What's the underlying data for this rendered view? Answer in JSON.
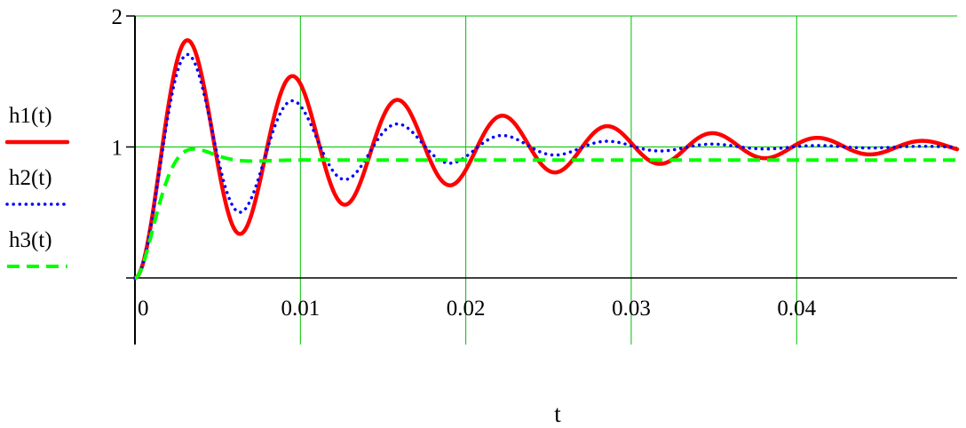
{
  "chart_data": {
    "type": "line",
    "xlabel": "t",
    "ylabel": "",
    "xlim": [
      0,
      0.0497
    ],
    "ylim": [
      0,
      2
    ],
    "grid": true,
    "legend_placement": "left",
    "x_ticks": [
      {
        "value": 0,
        "label": "0"
      },
      {
        "value": 0.01,
        "label": "0.01"
      },
      {
        "value": 0.02,
        "label": "0.02"
      },
      {
        "value": 0.03,
        "label": "0.03"
      },
      {
        "value": 0.04,
        "label": "0.04"
      }
    ],
    "y_ticks": [
      {
        "value": 0,
        "label": ""
      },
      {
        "value": 1,
        "label": "1"
      },
      {
        "value": 2,
        "label": "2"
      }
    ],
    "series": [
      {
        "name": "h1(t)",
        "color": "#ff0000",
        "style": "solid",
        "model": {
          "k": 1,
          "zeta": 0.065,
          "wd": 990
        },
        "points": [
          [
            0,
            0
          ],
          [
            0.0029,
            1.84
          ],
          [
            0.0062,
            0.3
          ],
          [
            0.0094,
            1.6
          ],
          [
            0.0126,
            0.51
          ],
          [
            0.0158,
            1.42
          ],
          [
            0.0189,
            0.65
          ],
          [
            0.0221,
            1.3
          ],
          [
            0.0252,
            0.75
          ],
          [
            0.0284,
            1.21
          ],
          [
            0.0315,
            0.83
          ],
          [
            0.0347,
            1.15
          ],
          [
            0.0378,
            0.89
          ],
          [
            0.041,
            1.11
          ],
          [
            0.0441,
            0.93
          ],
          [
            0.0473,
            1.07
          ]
        ]
      },
      {
        "name": "h2(t)",
        "color": "#0000ff",
        "style": "dotted",
        "model": {
          "k": 1,
          "zeta": 0.11,
          "wd": 990
        },
        "points": [
          [
            0,
            0
          ],
          [
            0.0029,
            1.7
          ],
          [
            0.0062,
            0.46
          ],
          [
            0.0094,
            1.38
          ],
          [
            0.0126,
            0.71
          ],
          [
            0.0158,
            1.19
          ],
          [
            0.0189,
            0.84
          ],
          [
            0.0221,
            1.1
          ],
          [
            0.0252,
            0.92
          ],
          [
            0.0284,
            1.05
          ],
          [
            0.0315,
            0.96
          ],
          [
            0.0347,
            1.02
          ],
          [
            0.0378,
            0.98
          ],
          [
            0.041,
            1.01
          ],
          [
            0.0473,
            1.0
          ]
        ]
      },
      {
        "name": "h3(t)",
        "color": "#00ff00",
        "style": "dashed",
        "model": {
          "k": 0.9,
          "zeta": 0.6,
          "wd": 880
        },
        "points": [
          [
            0,
            0
          ],
          [
            0.0015,
            0.55
          ],
          [
            0.0035,
            1.03
          ],
          [
            0.0055,
            0.92
          ],
          [
            0.0075,
            0.9
          ],
          [
            0.0497,
            0.9
          ]
        ]
      }
    ]
  }
}
